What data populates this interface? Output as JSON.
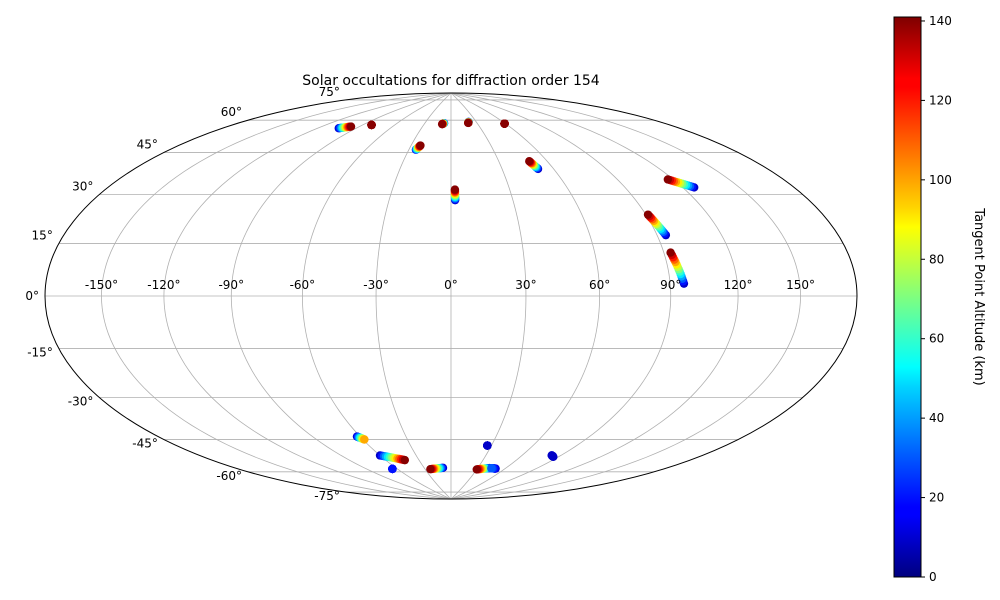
{
  "chart_data": {
    "type": "scatter",
    "projection": "hammer",
    "title": "Solar occultations for diffraction order 154",
    "grid": true,
    "lon_ticks": [
      -150,
      -120,
      -90,
      -60,
      -30,
      0,
      30,
      60,
      90,
      120,
      150
    ],
    "lon_tick_labels": [
      "-150°",
      "-120°",
      "-90°",
      "-60°",
      "-30°",
      "0°",
      "30°",
      "60°",
      "90°",
      "120°",
      "150°"
    ],
    "lat_ticks": [
      75,
      60,
      45,
      30,
      15,
      0,
      -15,
      -30,
      -45,
      -60,
      -75
    ],
    "lat_tick_labels": [
      "75°",
      "60°",
      "45°",
      "30°",
      "15°",
      "0°",
      "-15°",
      "-30°",
      "-45°",
      "-60°",
      "-75°"
    ],
    "colorbar": {
      "label": "Tangent Point Altitude (km)",
      "range": [
        0,
        141
      ],
      "ticks": [
        0,
        20,
        40,
        60,
        80,
        100,
        120,
        140
      ],
      "tick_labels": [
        "0",
        "20",
        "40",
        "60",
        "80",
        "100",
        "120",
        "140"
      ],
      "colormap": "jet"
    },
    "tracks": [
      {
        "lon_start": -104,
        "lat_start": 67,
        "alt_start": 10,
        "lon_end": -97,
        "lat_end": 68.5,
        "alt_end": 140
      },
      {
        "lon_start": -82,
        "lat_start": 70.5,
        "alt_start": 130,
        "lon_end": -82,
        "lat_end": 70.5,
        "alt_end": 140
      },
      {
        "lon_start": -25,
        "lat_start": 61,
        "alt_start": 20,
        "lon_end": -23,
        "lat_end": 63,
        "alt_end": 140
      },
      {
        "lon_start": -8,
        "lat_start": 74,
        "alt_start": 20,
        "lon_end": -10,
        "lat_end": 73.5,
        "alt_end": 140
      },
      {
        "lon_start": 21,
        "lat_start": 74.5,
        "alt_start": 20,
        "lon_end": 20,
        "lat_end": 74,
        "alt_end": 140
      },
      {
        "lon_start": 59,
        "lat_start": 72.5,
        "alt_start": 130,
        "lon_end": 59,
        "lat_end": 72.5,
        "alt_end": 140
      },
      {
        "lon_start": 2,
        "lat_start": 39,
        "alt_start": 10,
        "lon_end": 2,
        "lat_end": 43.5,
        "alt_end": 140
      },
      {
        "lon_start": 51,
        "lat_start": 51.5,
        "alt_start": 10,
        "lon_end": 49,
        "lat_end": 55,
        "alt_end": 140
      },
      {
        "lon_start": 126,
        "lat_start": 38.5,
        "alt_start": 10,
        "lon_end": 117,
        "lat_end": 42.5,
        "alt_end": 140
      },
      {
        "lon_start": 94,
        "lat_start": 22.5,
        "alt_start": 10,
        "lon_end": 91,
        "lat_end": 30.5,
        "alt_end": 140
      },
      {
        "lon_start": 96,
        "lat_start": 4.5,
        "alt_start": 10,
        "lon_end": 93,
        "lat_end": 16,
        "alt_end": 140
      },
      {
        "lon_start": -62,
        "lat_start": -57,
        "alt_start": 10,
        "lon_end": -59,
        "lat_end": -58.5,
        "alt_end": 100
      },
      {
        "lon_start": -60,
        "lat_start": -66,
        "alt_start": 10,
        "lon_end": -43,
        "lat_end": -69,
        "alt_end": 140
      },
      {
        "lon_start": -65,
        "lat_start": -72.5,
        "alt_start": 10,
        "lon_end": -65,
        "lat_end": -72.5,
        "alt_end": 20
      },
      {
        "lon_start": -9,
        "lat_start": -73.5,
        "alt_start": 10,
        "lon_end": -24,
        "lat_end": -74,
        "alt_end": 140
      },
      {
        "lon_start": 43,
        "lat_start": -73,
        "alt_start": 10,
        "lon_end": 30,
        "lat_end": -74,
        "alt_end": 140
      },
      {
        "lon_start": 50,
        "lat_start": -73,
        "alt_start": 10,
        "lon_end": 45,
        "lat_end": -73,
        "alt_end": 30
      },
      {
        "lon_start": 27,
        "lat_start": -62.5,
        "alt_start": 10,
        "lon_end": 27,
        "lat_end": -62.5,
        "alt_end": 10
      },
      {
        "lon_start": 83,
        "lat_start": -64.5,
        "alt_start": 10,
        "lon_end": 86,
        "lat_end": -65,
        "alt_end": 10
      }
    ]
  }
}
